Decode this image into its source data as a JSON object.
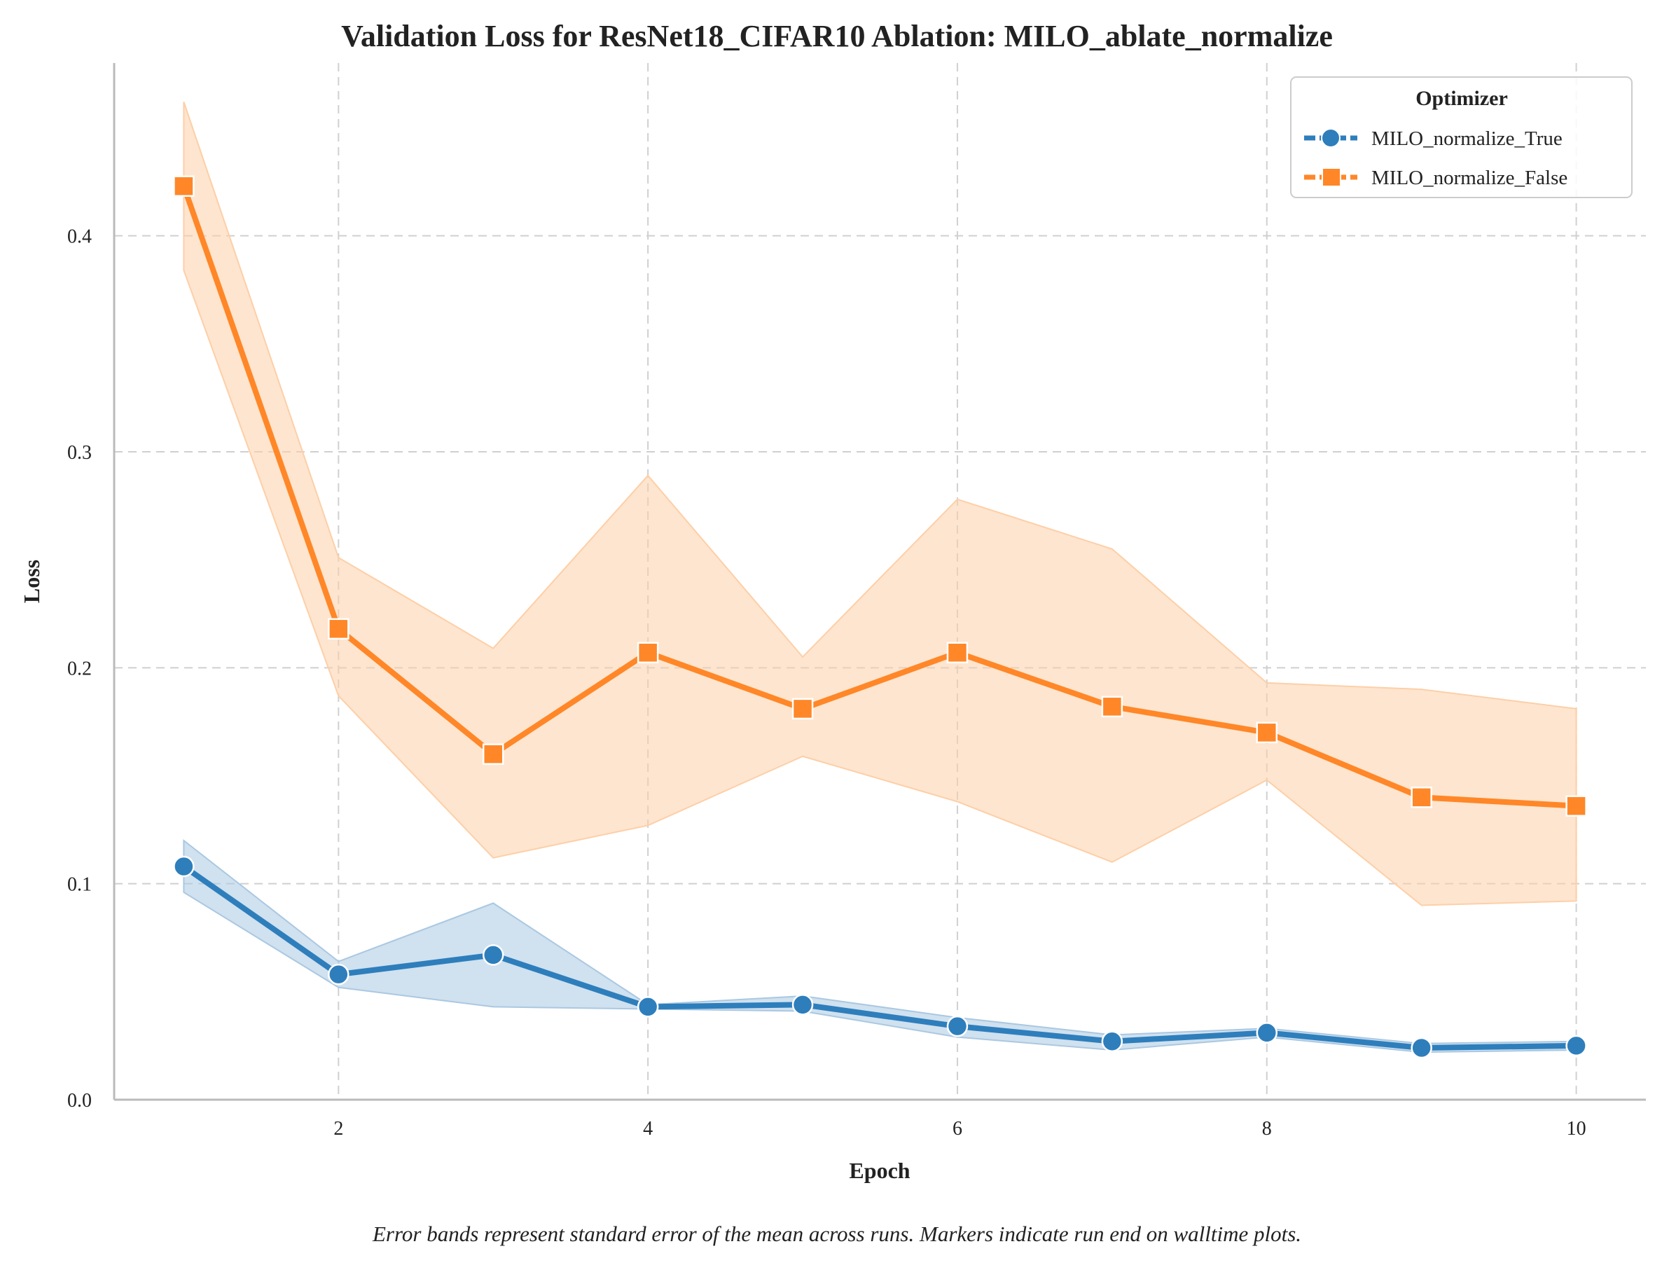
{
  "chart_data": {
    "type": "line",
    "title": "Validation Loss for ResNet18_CIFAR10 Ablation: MILO_ablate_normalize",
    "xlabel": "Epoch",
    "ylabel": "Loss",
    "caption": "Error bands represent standard error of the mean across runs. Markers indicate run end on walltime plots.",
    "xlim": [
      0.55,
      10.45
    ],
    "ylim": [
      0.0,
      0.48
    ],
    "xticks": [
      2,
      4,
      6,
      8,
      10
    ],
    "yticks": [
      0.0,
      0.1,
      0.2,
      0.3,
      0.4
    ],
    "xtick_labels": [
      "2",
      "4",
      "6",
      "8",
      "10"
    ],
    "ytick_labels": [
      "0.0",
      "0.1",
      "0.2",
      "0.3",
      "0.4"
    ],
    "grid": true,
    "legend": {
      "title": "Optimizer",
      "placement": "top-right"
    },
    "x": [
      1,
      2,
      3,
      4,
      5,
      6,
      7,
      8,
      9,
      10
    ],
    "series": [
      {
        "name": "MILO_normalize_True",
        "color": "#2e7ebc",
        "band_color": "#aac8e2",
        "marker": "circle",
        "values": [
          0.108,
          0.058,
          0.067,
          0.043,
          0.044,
          0.034,
          0.027,
          0.031,
          0.024,
          0.025
        ],
        "lower": [
          0.096,
          0.052,
          0.043,
          0.042,
          0.041,
          0.029,
          0.023,
          0.029,
          0.022,
          0.023
        ],
        "upper": [
          0.12,
          0.064,
          0.091,
          0.044,
          0.048,
          0.038,
          0.03,
          0.033,
          0.026,
          0.027
        ]
      },
      {
        "name": "MILO_normalize_False",
        "color": "#ff8728",
        "band_color": "#fdcfa7",
        "marker": "square",
        "values": [
          0.423,
          0.218,
          0.16,
          0.207,
          0.181,
          0.207,
          0.182,
          0.17,
          0.14,
          0.136
        ],
        "lower": [
          0.384,
          0.187,
          0.112,
          0.127,
          0.159,
          0.138,
          0.11,
          0.148,
          0.09,
          0.092
        ],
        "upper": [
          0.462,
          0.251,
          0.209,
          0.289,
          0.205,
          0.278,
          0.255,
          0.193,
          0.19,
          0.181
        ]
      }
    ]
  }
}
